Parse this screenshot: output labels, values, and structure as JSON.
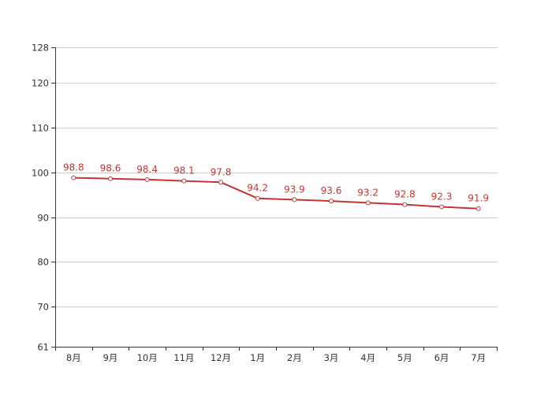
{
  "chart_data": {
    "type": "line",
    "title": "",
    "xlabel": "",
    "ylabel": "",
    "categories": [
      "8月",
      "9月",
      "10月",
      "11月",
      "12月",
      "1月",
      "2月",
      "3月",
      "4月",
      "5月",
      "6月",
      "7月"
    ],
    "series": [
      {
        "values": [
          98.8,
          98.6,
          98.4,
          98.1,
          97.8,
          94.2,
          93.9,
          93.6,
          93.2,
          92.8,
          92.3,
          91.9
        ]
      }
    ],
    "ylim": [
      61,
      128
    ],
    "yticks": [
      61,
      70,
      80,
      90,
      100,
      110,
      120,
      128
    ],
    "grid": true,
    "data_labels": true,
    "colors": {
      "line": "#c23531",
      "marker_fill": "#ffffff",
      "grid": "#cccccc",
      "axis": "#333333",
      "label": "#c23531"
    }
  }
}
